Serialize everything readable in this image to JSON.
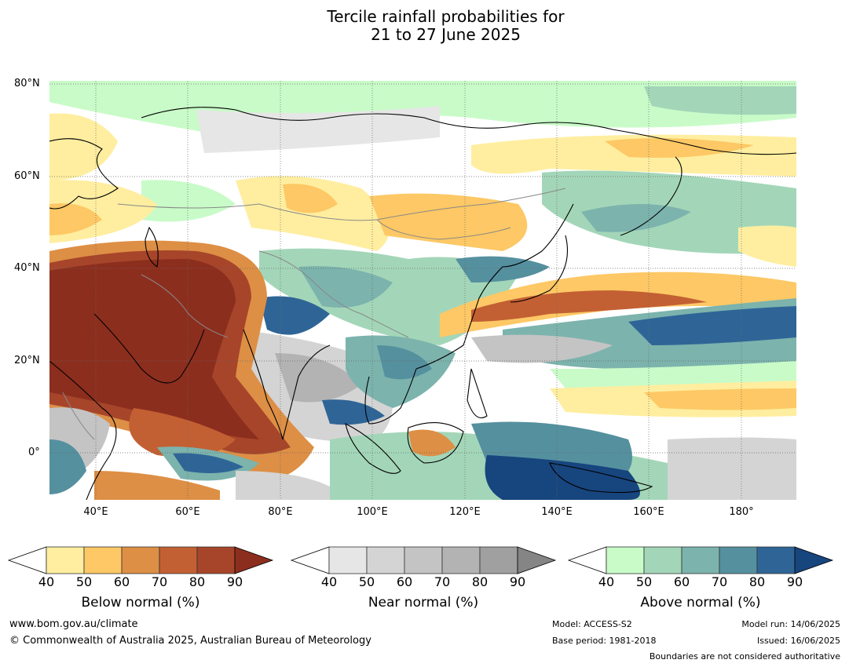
{
  "title": {
    "line1": "Tercile rainfall probabilities for",
    "line2": "21 to 27 June 2025"
  },
  "map": {
    "lat_labels": [
      "80°N",
      "60°N",
      "40°N",
      "20°N",
      "0°"
    ],
    "lon_labels": [
      "40°E",
      "60°E",
      "80°E",
      "100°E",
      "120°E",
      "140°E",
      "160°E",
      "180°"
    ]
  },
  "colorbars": [
    {
      "name": "below",
      "title": "Below normal (%)",
      "ticks": [
        "40",
        "50",
        "60",
        "70",
        "80",
        "90"
      ],
      "colors": [
        "#ffeea0",
        "#fdc865",
        "#dd8f45",
        "#c36033",
        "#a7452a",
        "#8c2e1e"
      ]
    },
    {
      "name": "near",
      "title": "Near normal (%)",
      "ticks": [
        "40",
        "50",
        "60",
        "70",
        "80",
        "90"
      ],
      "colors": [
        "#e6e6e6",
        "#d4d4d4",
        "#c4c4c4",
        "#b3b3b3",
        "#a0a0a0",
        "#858585"
      ]
    },
    {
      "name": "above",
      "title": "Above normal (%)",
      "ticks": [
        "40",
        "50",
        "60",
        "70",
        "80",
        "90"
      ],
      "colors": [
        "#c8fbc8",
        "#a3d6b8",
        "#7cb3ad",
        "#55909f",
        "#2f6596",
        "#17457e"
      ]
    }
  ],
  "footer": {
    "website": "www.bom.gov.au/climate",
    "copyright": "© Commonwealth of Australia 2025, Australian Bureau of Meteorology",
    "model": "Model: ACCESS-S2",
    "base_period": "Base period: 1981-2018",
    "model_run": "Model run: 14/06/2025",
    "issued": "Issued: 16/06/2025",
    "boundaries": "Boundaries are not considered authoritative"
  }
}
